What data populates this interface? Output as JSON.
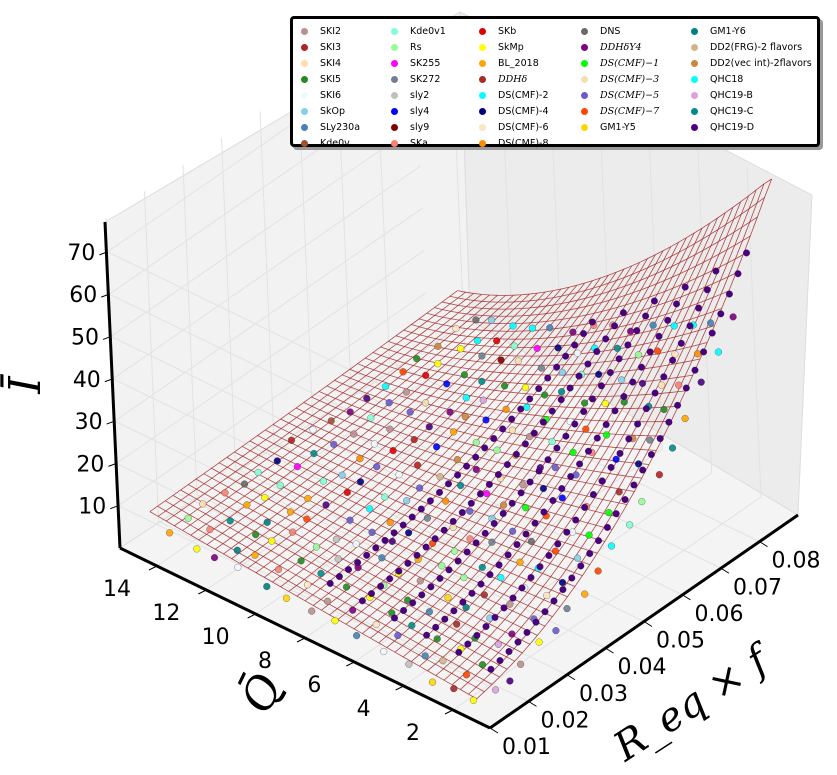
{
  "chart_data": {
    "type": "scatter",
    "subtype": "3d-scatter-with-fitted-wireframe-surface",
    "title": "",
    "xlabel": "R_eq × f",
    "ylabel": "Q̄",
    "zlabel": "Ī",
    "x_ticks": [
      "0.01",
      "0.02",
      "0.03",
      "0.04",
      "0.05",
      "0.06",
      "0.07",
      "0.08"
    ],
    "y_ticks": [
      "2",
      "4",
      "6",
      "8",
      "10",
      "12",
      "14"
    ],
    "z_ticks": [
      "10",
      "20",
      "30",
      "40",
      "50",
      "60",
      "70"
    ],
    "xlim": [
      0.01,
      0.09
    ],
    "ylim": [
      0.5,
      15.5
    ],
    "zlim": [
      0,
      78
    ],
    "surface_color": "#a52a2a",
    "grid": true,
    "legend_placement": "top-right",
    "series_summary": "Each equation of state is sampled along curves of increasing R_eq·f; points cluster along a valley of the fitted surface, with Ī ranging roughly 5–45 and Q̄ roughly 1–14.",
    "series": [
      {
        "name": "SKI2",
        "color": "#bc8f8f"
      },
      {
        "name": "SKI3",
        "color": "#b22222"
      },
      {
        "name": "SKI4",
        "color": "#ffdead"
      },
      {
        "name": "SKI5",
        "color": "#228b22"
      },
      {
        "name": "SKI6",
        "color": "#f0f8ff"
      },
      {
        "name": "SkOp",
        "color": "#87ceeb"
      },
      {
        "name": "SLy230a",
        "color": "#4682b4"
      },
      {
        "name": "Kde0v",
        "color": "#a0522d"
      },
      {
        "name": "Kde0v1",
        "color": "#7fffd4"
      },
      {
        "name": "Rs",
        "color": "#98fb98"
      },
      {
        "name": "SK255",
        "color": "#ff00ff"
      },
      {
        "name": "SK272",
        "color": "#708090"
      },
      {
        "name": "sly2",
        "color": "#c0c0c0"
      },
      {
        "name": "sly4",
        "color": "#0000ff"
      },
      {
        "name": "sly9",
        "color": "#800000"
      },
      {
        "name": "SKa",
        "color": "#fa8072"
      },
      {
        "name": "SKb",
        "color": "#e00000"
      },
      {
        "name": "SkMp",
        "color": "#ffff00"
      },
      {
        "name": "BL_2018",
        "color": "#ffa500"
      },
      {
        "name": "DDHδ",
        "color": "#a52a2a",
        "math": true
      },
      {
        "name": "DS(CMF)-2",
        "color": "#00ffff"
      },
      {
        "name": "DS(CMF)-4",
        "color": "#000080"
      },
      {
        "name": "DS(CMF)-6",
        "color": "#ffe4c4"
      },
      {
        "name": "DS(CMF)-8",
        "color": "#ff8c00"
      },
      {
        "name": "DNS",
        "color": "#696969"
      },
      {
        "name": "DDHδY4",
        "color": "#800080",
        "math": true
      },
      {
        "name": "DS(CMF)−1",
        "color": "#00ff00",
        "math": true
      },
      {
        "name": "DS(CMF)−3",
        "color": "#f5deb3",
        "math": true
      },
      {
        "name": "DS(CMF)−5",
        "color": "#6a5acd",
        "math": true
      },
      {
        "name": "DS(CMF)−7",
        "color": "#ff4500",
        "math": true
      },
      {
        "name": "GM1-Y5",
        "color": "#ffd700"
      },
      {
        "name": "GM1-Y6",
        "color": "#008080"
      },
      {
        "name": "DD2(FRG)-2 flavors",
        "color": "#d2b48c"
      },
      {
        "name": "DD2(vec int)-2flavors",
        "color": "#cd853f"
      },
      {
        "name": "QHC18",
        "color": "#00ffff"
      },
      {
        "name": "QHC19-B",
        "color": "#dda0dd"
      },
      {
        "name": "QHC19-C",
        "color": "#008b8b"
      },
      {
        "name": "QHC19-D",
        "color": "#4b0082"
      }
    ]
  }
}
